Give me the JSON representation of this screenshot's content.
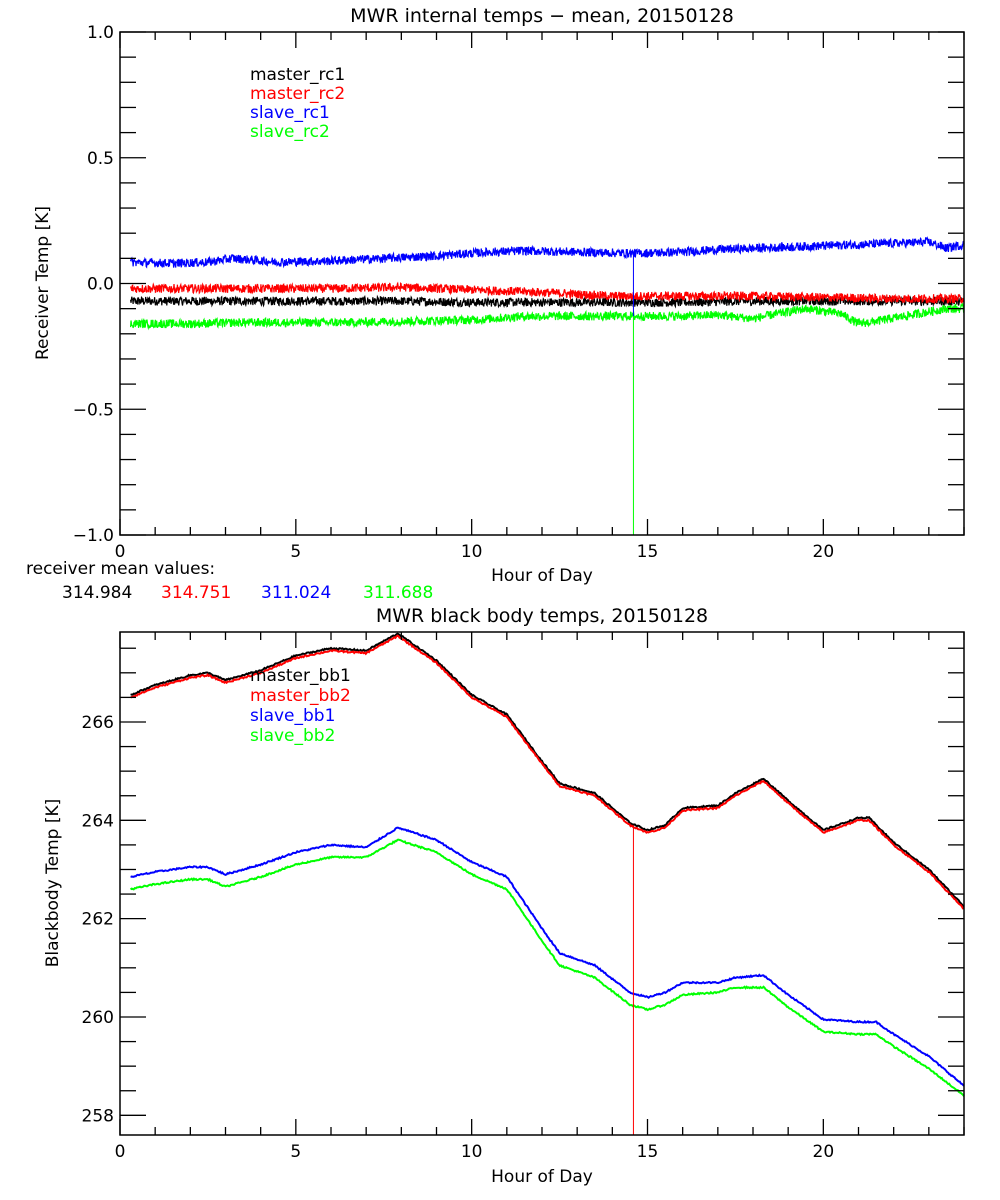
{
  "chart_data": [
    {
      "type": "line",
      "title": "MWR internal temps − mean, 20150128",
      "xlabel": "Hour of Day",
      "ylabel": "Receiver Temp [K]",
      "xlim": [
        0,
        24
      ],
      "ylim": [
        -1.0,
        1.0
      ],
      "xticks": [
        0,
        5,
        10,
        15,
        20
      ],
      "xtick_labels": [
        "0",
        "5",
        "10",
        "15",
        "20"
      ],
      "yticks": [
        -1.0,
        -0.5,
        0.0,
        0.5,
        1.0
      ],
      "ytick_labels": [
        "−1.0",
        "−0.5",
        "0.0",
        "0.5",
        "1.0"
      ],
      "grid": false,
      "legend_position": "top-left",
      "noisy": true,
      "spike": {
        "x": 14.6,
        "series": [
          "slave_rc1",
          "slave_rc2"
        ],
        "range": [
          -1.0,
          0.12
        ]
      },
      "series": [
        {
          "name": "master_rc1",
          "color": "#000000",
          "x": [
            0.3,
            2,
            4,
            6,
            8,
            10,
            12,
            14,
            16,
            18,
            20,
            22,
            24
          ],
          "y": [
            -0.07,
            -0.07,
            -0.07,
            -0.07,
            -0.07,
            -0.075,
            -0.075,
            -0.075,
            -0.075,
            -0.07,
            -0.07,
            -0.07,
            -0.07
          ]
        },
        {
          "name": "master_rc2",
          "color": "#ff0000",
          "x": [
            0.3,
            2,
            4,
            6,
            8,
            10,
            12,
            14,
            16,
            18,
            20,
            22,
            24
          ],
          "y": [
            -0.02,
            -0.02,
            -0.02,
            -0.02,
            -0.015,
            -0.025,
            -0.035,
            -0.05,
            -0.05,
            -0.05,
            -0.055,
            -0.06,
            -0.06
          ]
        },
        {
          "name": "slave_rc1",
          "color": "#0000ff",
          "x": [
            0.3,
            1.5,
            2.5,
            3.2,
            4.5,
            6,
            7.5,
            9,
            10.5,
            11.5,
            13,
            14.6,
            16,
            17,
            18,
            19,
            20,
            21,
            22,
            23,
            23.5,
            24
          ],
          "y": [
            0.085,
            0.08,
            0.085,
            0.1,
            0.085,
            0.09,
            0.1,
            0.11,
            0.125,
            0.13,
            0.125,
            0.12,
            0.125,
            0.135,
            0.14,
            0.145,
            0.15,
            0.155,
            0.16,
            0.165,
            0.14,
            0.155
          ]
        },
        {
          "name": "slave_rc2",
          "color": "#00ff00",
          "x": [
            0.3,
            2,
            3.5,
            5,
            6.5,
            8,
            10,
            11.5,
            13,
            14.6,
            16,
            17,
            18,
            18.7,
            19.5,
            20.5,
            21,
            21.5,
            22.5,
            23.5,
            24
          ],
          "y": [
            -0.16,
            -0.16,
            -0.155,
            -0.155,
            -0.155,
            -0.15,
            -0.145,
            -0.13,
            -0.13,
            -0.13,
            -0.13,
            -0.125,
            -0.14,
            -0.12,
            -0.1,
            -0.12,
            -0.16,
            -0.15,
            -0.125,
            -0.1,
            -0.1
          ]
        }
      ],
      "footer": {
        "label": "receiver mean values:",
        "values": [
          {
            "series": "master_rc1",
            "value": "314.984",
            "color": "#000000"
          },
          {
            "series": "master_rc2",
            "value": "314.751",
            "color": "#ff0000"
          },
          {
            "series": "slave_rc1",
            "value": "311.024",
            "color": "#0000ff"
          },
          {
            "series": "slave_rc2",
            "value": "311.688",
            "color": "#00ff00"
          }
        ]
      }
    },
    {
      "type": "line",
      "title": "MWR black body temps, 20150128",
      "xlabel": "Hour of Day",
      "ylabel": "Blackbody Temp [K]",
      "xlim": [
        0,
        24
      ],
      "ylim": [
        257.6,
        267.83
      ],
      "xticks": [
        0,
        5,
        10,
        15,
        20
      ],
      "xtick_labels": [
        "0",
        "5",
        "10",
        "15",
        "20"
      ],
      "yticks": [
        258,
        260,
        262,
        264,
        266
      ],
      "ytick_labels": [
        "258",
        "260",
        "262",
        "264",
        "266"
      ],
      "grid": false,
      "legend_position": "top-left",
      "spike": {
        "x": 14.6,
        "series": [
          "master_bb2"
        ],
        "range": [
          257.6,
          263.9
        ]
      },
      "series": [
        {
          "name": "master_bb1",
          "color": "#000000",
          "x": [
            0.3,
            1,
            2,
            2.5,
            3,
            4,
            5,
            6,
            7,
            7.9,
            9,
            10,
            11,
            12,
            12.5,
            13.5,
            14.5,
            15,
            15.5,
            16,
            17,
            17.5,
            18.3,
            19,
            20,
            21,
            21.3,
            22,
            23,
            24
          ],
          "y": [
            266.55,
            266.75,
            266.95,
            267.0,
            266.85,
            267.05,
            267.35,
            267.5,
            267.45,
            267.8,
            267.25,
            266.55,
            266.15,
            265.2,
            264.75,
            264.55,
            263.95,
            263.8,
            263.9,
            264.25,
            264.3,
            264.55,
            264.85,
            264.4,
            263.8,
            264.05,
            264.05,
            263.55,
            263.0,
            262.25
          ]
        },
        {
          "name": "master_bb2",
          "color": "#ff0000",
          "x": [
            0.3,
            1,
            2,
            2.5,
            3,
            4,
            5,
            6,
            7,
            7.9,
            9,
            10,
            11,
            12,
            12.5,
            13.5,
            14.5,
            15,
            15.5,
            16,
            17,
            17.5,
            18.3,
            19,
            20,
            21,
            21.3,
            22,
            23,
            24
          ],
          "y": [
            266.5,
            266.7,
            266.9,
            266.95,
            266.8,
            267.0,
            267.3,
            267.45,
            267.4,
            267.75,
            267.2,
            266.5,
            266.1,
            265.15,
            264.7,
            264.5,
            263.9,
            263.75,
            263.85,
            264.2,
            264.25,
            264.5,
            264.8,
            264.35,
            263.75,
            264.0,
            264.0,
            263.5,
            262.95,
            262.2
          ]
        },
        {
          "name": "slave_bb1",
          "color": "#0000ff",
          "x": [
            0.3,
            1,
            2,
            2.5,
            3,
            4,
            5,
            6,
            7,
            7.9,
            9,
            10,
            11,
            12,
            12.5,
            13.5,
            14.5,
            15,
            15.5,
            16,
            17,
            17.5,
            18.3,
            19,
            20,
            21,
            21.5,
            22,
            23,
            24
          ],
          "y": [
            262.85,
            262.95,
            263.05,
            263.05,
            262.9,
            263.1,
            263.35,
            263.5,
            263.45,
            263.85,
            263.6,
            263.15,
            262.85,
            261.8,
            261.3,
            261.05,
            260.5,
            260.4,
            260.5,
            260.7,
            260.7,
            260.8,
            260.85,
            260.45,
            259.95,
            259.9,
            259.9,
            259.65,
            259.2,
            258.6
          ]
        },
        {
          "name": "slave_bb2",
          "color": "#00ff00",
          "x": [
            0.3,
            1,
            2,
            2.5,
            3,
            4,
            5,
            6,
            7,
            7.9,
            9,
            10,
            11,
            12,
            12.5,
            13.5,
            14.5,
            15,
            15.5,
            16,
            17,
            17.5,
            18.3,
            19,
            20,
            21,
            21.5,
            22,
            23,
            24
          ],
          "y": [
            262.6,
            262.7,
            262.8,
            262.8,
            262.65,
            262.85,
            263.1,
            263.25,
            263.25,
            263.6,
            263.35,
            262.9,
            262.6,
            261.55,
            261.05,
            260.8,
            260.25,
            260.15,
            260.25,
            260.45,
            260.5,
            260.6,
            260.6,
            260.2,
            259.7,
            259.65,
            259.65,
            259.4,
            258.95,
            258.4
          ]
        }
      ]
    }
  ]
}
